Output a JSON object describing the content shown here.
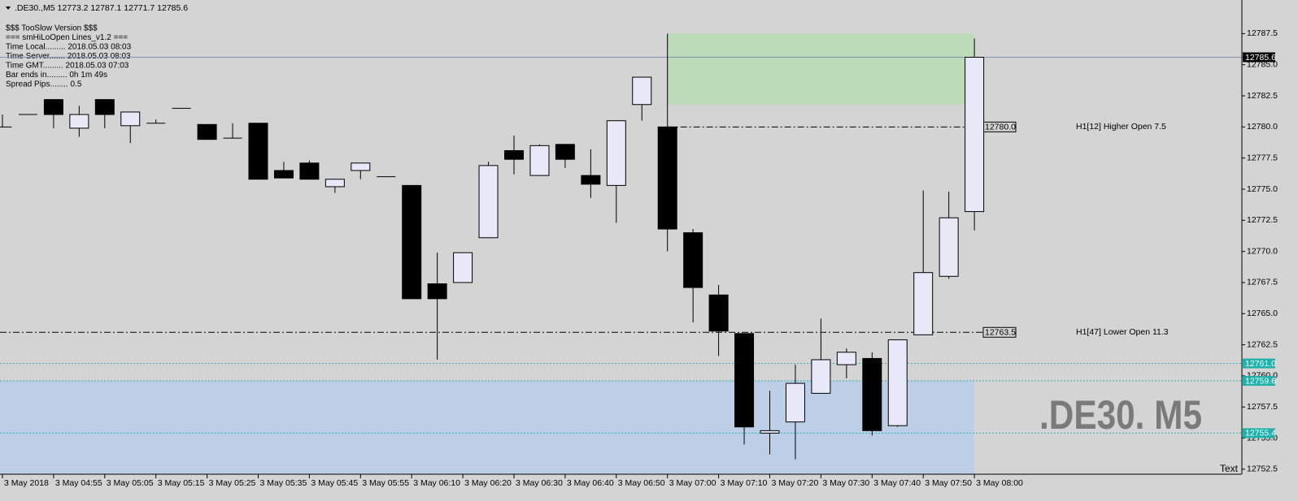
{
  "header": ".DE30.,M5  12773.2 12787.1 12771.7 12785.6",
  "info": [
    "$$$ TooSlow Version $$$",
    "=== smHiLoOpen Lines_v1.2 ===",
    "Time Local......... 2018.05.03 08:03",
    "Time Server....... 2018.05.03 08:03",
    "Time GMT......... 2018.05.03 07:03",
    "Bar ends in......... 0h 1m 49s",
    "Spread Pips........ 0.5"
  ],
  "watermark": ".DE30. M5",
  "corner_text": "Text",
  "chart_data": {
    "type": "candlestick",
    "categories": [
      "3 May 2018",
      null,
      "3 May 04:55",
      null,
      "3 May 05:05",
      null,
      "3 May 05:15",
      null,
      "3 May 05:25",
      null,
      "3 May 05:35",
      null,
      "3 May 05:45",
      null,
      "3 May 05:55",
      null,
      "3 May 06:10",
      null,
      "3 May 06:20",
      null,
      "3 May 06:30",
      null,
      "3 May 06:40",
      null,
      "3 May 06:50",
      null,
      "3 May 07:00",
      null,
      "3 May 07:10",
      null,
      "3 May 07:20",
      null,
      "3 May 07:30",
      null,
      "3 May 07:40",
      null,
      "3 May 07:50",
      null,
      "3 May 08:00"
    ],
    "open": [
      12780.0,
      12781.0,
      12782.2,
      12779.9,
      12782.2,
      12780.1,
      12780.3,
      12781.5,
      12780.2,
      12779.1,
      12780.3,
      12776.5,
      12777.1,
      12775.2,
      12776.5,
      12776.0,
      12775.3,
      12767.4,
      12767.5,
      12771.1,
      12778.1,
      12776.1,
      12778.6,
      12776.1,
      12775.3,
      12781.8,
      12780.0,
      12771.5,
      12766.5,
      12763.4,
      12755.4,
      12756.3,
      12758.6,
      12760.9,
      12761.4,
      12756.0,
      12763.3,
      12768.0,
      12773.2
    ],
    "high": [
      12781.0,
      12781.0,
      12782.2,
      12781.7,
      12782.2,
      12781.2,
      12780.6,
      12781.5,
      12780.2,
      12780.3,
      12780.3,
      12777.2,
      12777.3,
      12775.8,
      12777.1,
      12776.0,
      12775.3,
      12769.9,
      12769.9,
      12777.2,
      12779.3,
      12778.6,
      12778.6,
      12778.2,
      12780.5,
      12784.0,
      12787.5,
      12771.8,
      12767.3,
      12763.4,
      12758.8,
      12760.9,
      12764.6,
      12762.2,
      12761.9,
      12762.9,
      12774.9,
      12774.8,
      12787.1
    ],
    "low": [
      12780.0,
      12781.0,
      12779.9,
      12779.2,
      12779.9,
      12778.7,
      12780.3,
      12781.5,
      12779.0,
      12779.1,
      12775.8,
      12775.9,
      12775.8,
      12774.7,
      12775.8,
      12776.0,
      12766.2,
      12761.3,
      12767.5,
      12771.1,
      12776.2,
      12776.1,
      12776.7,
      12774.3,
      12772.3,
      12780.5,
      12770.0,
      12764.3,
      12761.6,
      12754.5,
      12753.7,
      12753.3,
      12758.6,
      12759.8,
      12755.2,
      12755.9,
      12763.3,
      12767.8,
      12771.7
    ],
    "close": [
      12780.0,
      12781.0,
      12781.0,
      12781.0,
      12781.0,
      12781.2,
      12780.3,
      12781.5,
      12779.0,
      12779.1,
      12775.8,
      12775.9,
      12775.8,
      12775.8,
      12777.1,
      12776.0,
      12766.2,
      12766.2,
      12769.9,
      12776.9,
      12777.4,
      12778.5,
      12777.4,
      12775.4,
      12780.5,
      12784.0,
      12771.8,
      12767.1,
      12763.6,
      12755.9,
      12755.6,
      12759.4,
      12761.3,
      12761.9,
      12755.6,
      12762.9,
      12768.3,
      12772.7,
      12785.6
    ],
    "up_color": "#e8e8f8",
    "down_color": "#000000",
    "ylim": [
      12752.1,
      12790.2
    ],
    "yticks": [
      12787.5,
      {
        "value": 12785.0,
        "label": "12785.0"
      },
      12782.5,
      {
        "value": 12780.0,
        "label": "12780.0"
      },
      12777.5,
      {
        "value": 12775.0,
        "label": "12775.0"
      },
      12772.5,
      {
        "value": 12770.0,
        "label": "12770.0"
      },
      12767.5,
      {
        "value": 12765.0,
        "label": "12765.0"
      },
      12762.5,
      {
        "value": 12760.0,
        "label": "12760.0"
      },
      12757.5,
      {
        "value": 12755.0,
        "label": "12755.0"
      },
      12752.5
    ],
    "zones": [
      {
        "range": [
          12781.8,
          12787.5
        ],
        "color": "#bcdbb8"
      },
      {
        "range": [
          12752.1,
          12759.6
        ],
        "color": "#bccfe6"
      }
    ],
    "levels": [
      {
        "value": 12780.0,
        "label": "12780.0",
        "text": "H1[12] Higher Open 7.5"
      },
      {
        "value": 12763.5,
        "label": "12763.5",
        "text": "H1[47] Lower Open 11.3"
      }
    ],
    "price_lines": [
      {
        "value": 12785.6,
        "label": "12785.6",
        "color": "#7f97b2",
        "label_bg": "#000000",
        "dashed": false
      },
      {
        "value": 12761.0,
        "label": "12761.0",
        "color": "#20b2aa",
        "label_bg": "#20b2aa",
        "dashed": true
      },
      {
        "value": 12759.6,
        "label": "12759.6",
        "color": "#20b2aa",
        "label_bg": "#20b2aa",
        "dashed": true
      },
      {
        "value": 12755.4,
        "label": "12755.4",
        "color": "#20b2aa",
        "label_bg": "#20b2aa",
        "dashed": true
      }
    ]
  }
}
